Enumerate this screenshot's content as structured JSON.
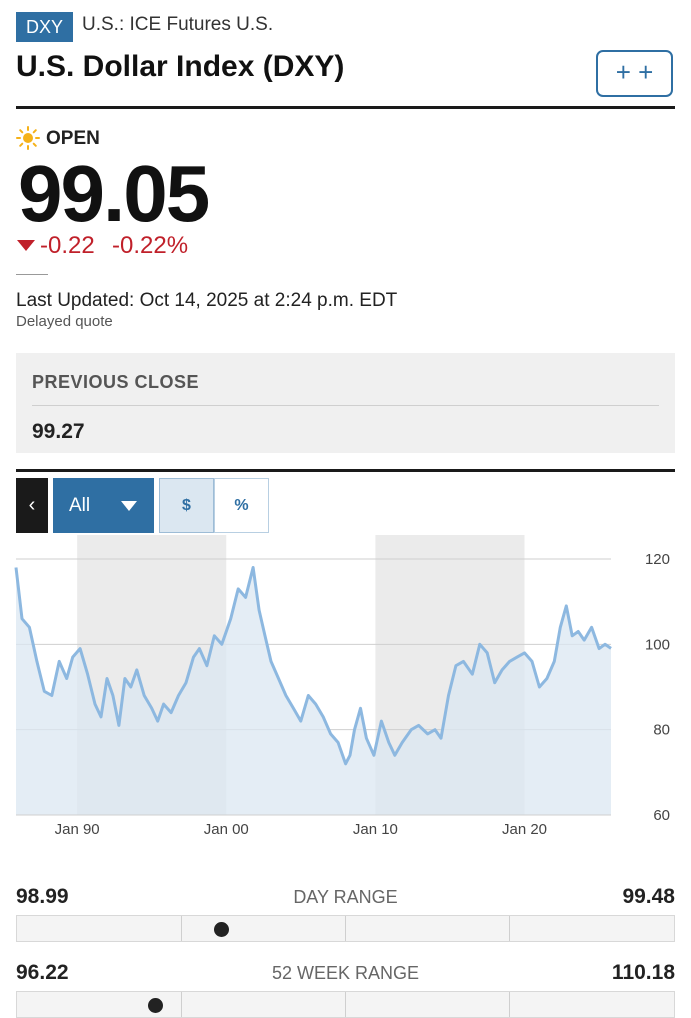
{
  "header": {
    "ticker": "DXY",
    "exchange": "U.S.: ICE Futures U.S.",
    "title": "U.S. Dollar Index (DXY)",
    "watch_label": "+ +"
  },
  "quote": {
    "status_icon": "sun-icon",
    "status": "OPEN",
    "price": "99.05",
    "change": "-0.22",
    "change_pct": "-0.22%",
    "last_updated": "Last Updated: Oct 14, 2025 at 2:24 p.m. EDT",
    "delayed": "Delayed quote",
    "colors": {
      "down": "#c0202a",
      "accent": "#2f6fa3"
    }
  },
  "previous_close": {
    "label": "PREVIOUS CLOSE",
    "value": "99.27"
  },
  "chart_controls": {
    "back_label": "‹",
    "range_label": "All",
    "dollar_label": "$",
    "percent_label": "%"
  },
  "chart_data": {
    "type": "area",
    "x_ticks": [
      "Jan 90",
      "Jan 00",
      "Jan 10",
      "Jan 20"
    ],
    "y_ticks": [
      120,
      100,
      80,
      60
    ],
    "ylim": [
      60,
      120
    ],
    "xlim": [
      1985.9,
      2025.8
    ],
    "grid": true,
    "colors": {
      "line": "#8db8e0",
      "fill": "#dbe7f1",
      "band": "#ebebeb"
    },
    "x": [
      1985.9,
      1986.3,
      1986.8,
      1987.3,
      1987.8,
      1988.3,
      1988.8,
      1989.3,
      1989.7,
      1990.2,
      1990.7,
      1991.2,
      1991.6,
      1992.0,
      1992.4,
      1992.8,
      1993.2,
      1993.6,
      1994.0,
      1994.5,
      1995.0,
      1995.4,
      1995.8,
      1996.3,
      1996.8,
      1997.3,
      1997.8,
      1998.2,
      1998.7,
      1999.2,
      1999.7,
      2000.3,
      2000.8,
      2001.3,
      2001.8,
      2002.2,
      2002.6,
      2003.0,
      2003.5,
      2004.0,
      2004.5,
      2005.0,
      2005.5,
      2006.0,
      2006.5,
      2007.0,
      2007.5,
      2008.0,
      2008.3,
      2008.6,
      2009.0,
      2009.4,
      2009.9,
      2010.4,
      2010.9,
      2011.3,
      2011.8,
      2012.4,
      2012.9,
      2013.5,
      2014.0,
      2014.4,
      2014.9,
      2015.4,
      2015.9,
      2016.5,
      2017.0,
      2017.5,
      2018.0,
      2018.5,
      2019.0,
      2019.5,
      2020.0,
      2020.5,
      2021.0,
      2021.5,
      2022.0,
      2022.4,
      2022.8,
      2023.2,
      2023.6,
      2024.0,
      2024.5,
      2025.0,
      2025.4,
      2025.8
    ],
    "values": [
      118,
      106,
      104,
      96,
      89,
      88,
      96,
      92,
      97,
      99,
      93,
      86,
      83,
      92,
      88,
      81,
      92,
      90,
      94,
      88,
      85,
      82,
      86,
      84,
      88,
      91,
      97,
      99,
      95,
      102,
      100,
      106,
      113,
      111,
      118,
      108,
      102,
      96,
      92,
      88,
      85,
      82,
      88,
      86,
      83,
      79,
      77,
      72,
      74,
      80,
      85,
      78,
      74,
      82,
      77,
      74,
      77,
      80,
      81,
      79,
      80,
      78,
      88,
      95,
      96,
      93,
      100,
      98,
      91,
      94,
      96,
      97,
      98,
      96,
      90,
      92,
      96,
      104,
      109,
      102,
      103,
      101,
      104,
      99,
      100,
      99.05
    ]
  },
  "day_range": {
    "low": "98.99",
    "label": "DAY RANGE",
    "high": "99.48",
    "position": 0.31
  },
  "week52_range": {
    "low": "96.22",
    "label": "52 WEEK RANGE",
    "high": "110.18",
    "position": 0.21
  }
}
